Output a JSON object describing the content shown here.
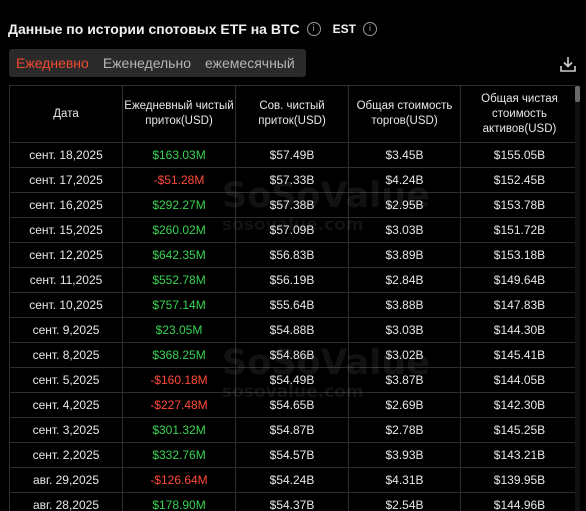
{
  "header": {
    "title": "Данные по истории спотовых ETF на BTC",
    "timezone": "EST"
  },
  "tabs": [
    {
      "label": "Ежедневно",
      "active": true
    },
    {
      "label": "Еженедельно",
      "active": false
    },
    {
      "label": "ежемесячный",
      "active": false
    }
  ],
  "columns": [
    "Дата",
    "Ежедневный чистый приток(USD)",
    "Сов. чистый приток(USD)",
    "Общая стоимость торгов(USD)",
    "Общая чистая стоимость активов(USD)"
  ],
  "rows": [
    {
      "date": "сент. 18,2025",
      "daily": "$163.03M",
      "sign": "pos",
      "cum": "$57.49B",
      "traded": "$3.45B",
      "assets": "$155.05B"
    },
    {
      "date": "сент. 17,2025",
      "daily": "-$51.28M",
      "sign": "neg",
      "cum": "$57.33B",
      "traded": "$4.24B",
      "assets": "$152.45B"
    },
    {
      "date": "сент. 16,2025",
      "daily": "$292.27M",
      "sign": "pos",
      "cum": "$57.38B",
      "traded": "$2.95B",
      "assets": "$153.78B"
    },
    {
      "date": "сент. 15,2025",
      "daily": "$260.02M",
      "sign": "pos",
      "cum": "$57.09B",
      "traded": "$3.03B",
      "assets": "$151.72B"
    },
    {
      "date": "сент. 12,2025",
      "daily": "$642.35M",
      "sign": "pos",
      "cum": "$56.83B",
      "traded": "$3.89B",
      "assets": "$153.18B"
    },
    {
      "date": "сент. 11,2025",
      "daily": "$552.78M",
      "sign": "pos",
      "cum": "$56.19B",
      "traded": "$2.84B",
      "assets": "$149.64B"
    },
    {
      "date": "сент. 10,2025",
      "daily": "$757.14M",
      "sign": "pos",
      "cum": "$55.64B",
      "traded": "$3.88B",
      "assets": "$147.83B"
    },
    {
      "date": "сент. 9,2025",
      "daily": "$23.05M",
      "sign": "pos",
      "cum": "$54.88B",
      "traded": "$3.03B",
      "assets": "$144.30B"
    },
    {
      "date": "сент. 8,2025",
      "daily": "$368.25M",
      "sign": "pos",
      "cum": "$54.86B",
      "traded": "$3.02B",
      "assets": "$145.41B"
    },
    {
      "date": "сент. 5,2025",
      "daily": "-$160.18M",
      "sign": "neg",
      "cum": "$54.49B",
      "traded": "$3.87B",
      "assets": "$144.05B"
    },
    {
      "date": "сент. 4,2025",
      "daily": "-$227.48M",
      "sign": "neg",
      "cum": "$54.65B",
      "traded": "$2.69B",
      "assets": "$142.30B"
    },
    {
      "date": "сент. 3,2025",
      "daily": "$301.32M",
      "sign": "pos",
      "cum": "$54.87B",
      "traded": "$2.78B",
      "assets": "$145.25B"
    },
    {
      "date": "сент. 2,2025",
      "daily": "$332.76M",
      "sign": "pos",
      "cum": "$54.57B",
      "traded": "$3.93B",
      "assets": "$143.21B"
    },
    {
      "date": "авг. 29,2025",
      "daily": "-$126.64M",
      "sign": "neg",
      "cum": "$54.24B",
      "traded": "$4.31B",
      "assets": "$139.95B"
    },
    {
      "date": "авг. 28,2025",
      "daily": "$178.90M",
      "sign": "pos",
      "cum": "$54.37B",
      "traded": "$2.54B",
      "assets": "$144.96B"
    }
  ],
  "watermark": {
    "brand": "SoSoValue",
    "domain": "sosovalue.com"
  },
  "colors": {
    "positive": "#39d353",
    "negative": "#ff4b3a",
    "accent": "#f04a2f"
  },
  "icons": {
    "info": "info-circle-icon",
    "download": "download-icon"
  }
}
